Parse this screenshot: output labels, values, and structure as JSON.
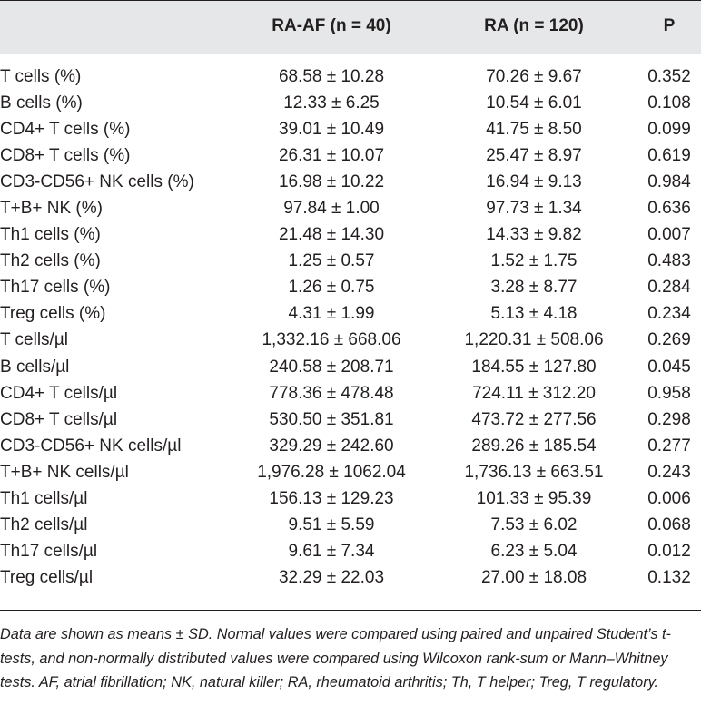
{
  "table": {
    "headers": [
      "",
      "RA-AF (n = 40)",
      "RA (n = 120)",
      "P"
    ],
    "rows": [
      [
        "T cells (%)",
        "68.58 ± 10.28",
        "70.26 ± 9.67",
        "0.352"
      ],
      [
        "B cells (%)",
        "12.33 ± 6.25",
        "10.54 ± 6.01",
        "0.108"
      ],
      [
        "CD4+ T cells (%)",
        "39.01 ± 10.49",
        "41.75 ± 8.50",
        "0.099"
      ],
      [
        "CD8+ T cells (%)",
        "26.31 ± 10.07",
        "25.47 ± 8.97",
        "0.619"
      ],
      [
        "CD3-CD56+ NK cells (%)",
        "16.98 ± 10.22",
        "16.94 ± 9.13",
        "0.984"
      ],
      [
        "T+B+ NK (%)",
        "97.84 ± 1.00",
        "97.73 ± 1.34",
        "0.636"
      ],
      [
        "Th1 cells (%)",
        "21.48 ± 14.30",
        "14.33 ± 9.82",
        "0.007"
      ],
      [
        "Th2 cells (%)",
        "1.25 ± 0.57",
        "1.52 ± 1.75",
        "0.483"
      ],
      [
        "Th17 cells (%)",
        "1.26 ± 0.75",
        "3.28 ± 8.77",
        "0.284"
      ],
      [
        "Treg cells (%)",
        "4.31 ± 1.99",
        "5.13 ± 4.18",
        "0.234"
      ],
      [
        "T cells/µl",
        "1,332.16 ± 668.06",
        "1,220.31 ± 508.06",
        "0.269"
      ],
      [
        "B cells/µl",
        "240.58 ± 208.71",
        "184.55 ± 127.80",
        "0.045"
      ],
      [
        "CD4+ T cells/µl",
        "778.36 ± 478.48",
        "724.11 ± 312.20",
        "0.958"
      ],
      [
        "CD8+ T cells/µl",
        "530.50 ± 351.81",
        "473.72 ± 277.56",
        "0.298"
      ],
      [
        "CD3-CD56+ NK cells/µl",
        "329.29 ± 242.60",
        "289.26 ± 185.54",
        "0.277"
      ],
      [
        "T+B+ NK cells/µl",
        "1,976.28 ± 1062.04",
        "1,736.13 ± 663.51",
        "0.243"
      ],
      [
        "Th1 cells/µl",
        "156.13 ± 129.23",
        "101.33 ± 95.39",
        "0.006"
      ],
      [
        "Th2 cells/µl",
        "9.51 ± 5.59",
        "7.53 ± 6.02",
        "0.068"
      ],
      [
        "Th17 cells/µl",
        "9.61 ± 7.34",
        "6.23 ± 5.04",
        "0.012"
      ],
      [
        "Treg cells/µl",
        "32.29 ± 22.03",
        "27.00 ± 18.08",
        "0.132"
      ]
    ]
  },
  "footnote": "Data are shown as means ± SD. Normal values were compared using paired and unpaired Student’s t-tests, and non-normally distributed values were compared using Wilcoxon rank-sum or Mann–Whitney tests. AF, atrial fibrillation; NK, natural killer; RA, rheumatoid arthritis; Th, T helper; Treg, T regulatory.",
  "colors": {
    "header_bg": "#e6e7e8",
    "text": "#231f20"
  }
}
